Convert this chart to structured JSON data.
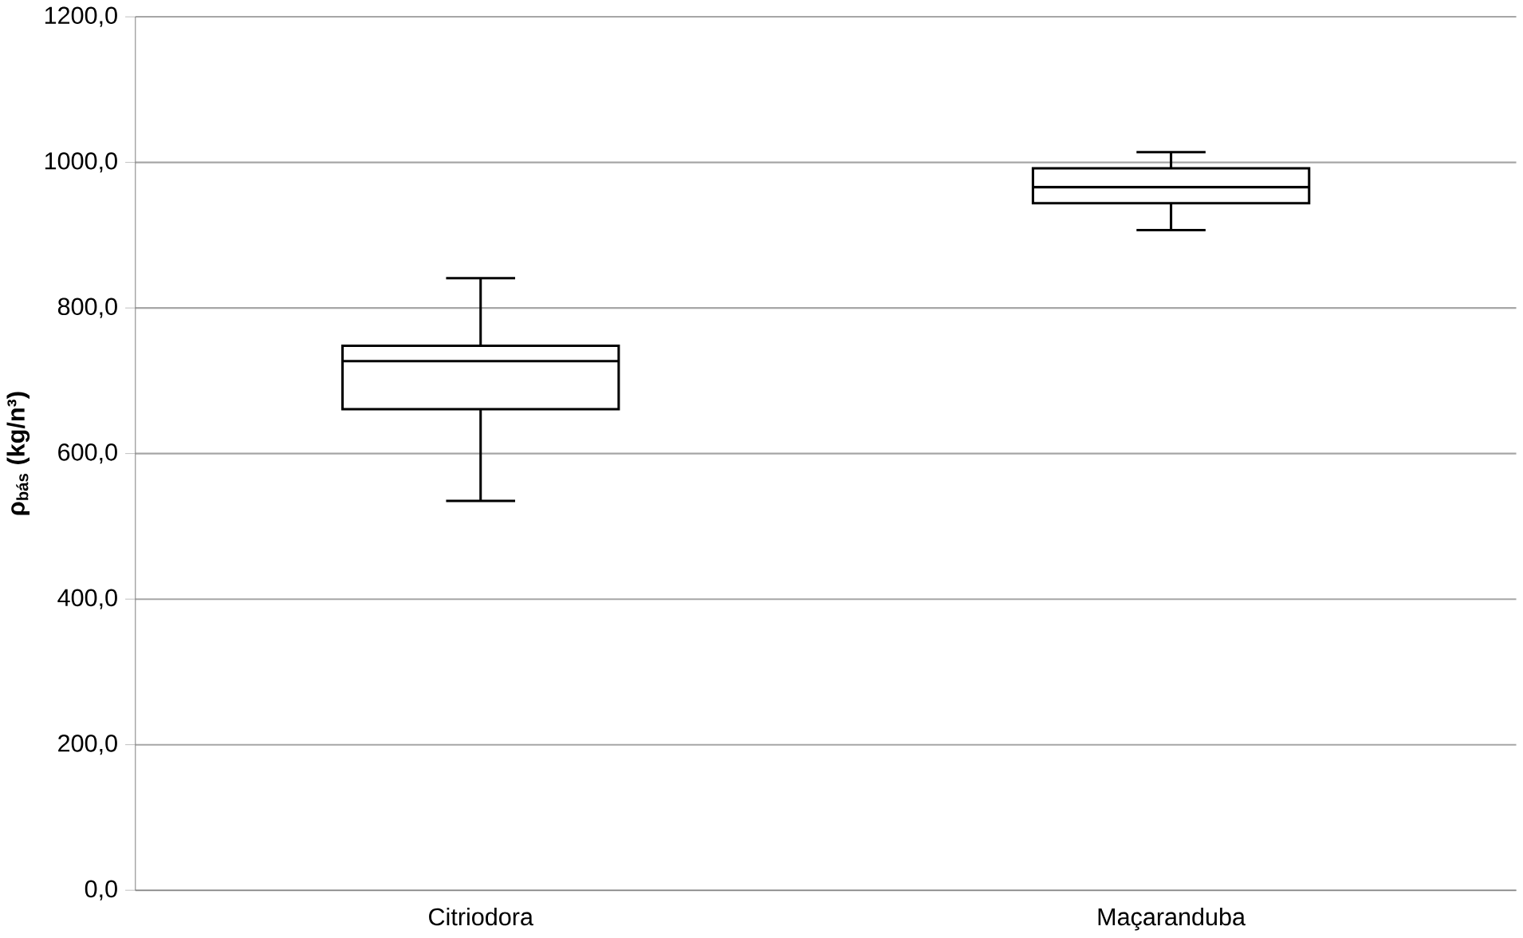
{
  "chart_data": {
    "type": "box",
    "ylabel": "ρ$_{bás}$ (kg/n³)",
    "categories": [
      "Citriodora",
      "Maçaranduba"
    ],
    "boxes": [
      {
        "low": 535,
        "q1": 661,
        "median": 727,
        "q3": 748,
        "high": 841
      },
      {
        "low": 907,
        "q1": 944,
        "median": 966,
        "q3": 992,
        "high": 1014
      }
    ],
    "ylim": [
      0,
      1200
    ],
    "yticks": [
      {
        "value": 0,
        "label": "0,0"
      },
      {
        "value": 200,
        "label": "200,0"
      },
      {
        "value": 400,
        "label": "400,0"
      },
      {
        "value": 600,
        "label": "600,0"
      },
      {
        "value": 800,
        "label": "800,0"
      },
      {
        "value": 1000,
        "label": "1000,0"
      },
      {
        "value": 1200,
        "label": "1200,0"
      }
    ],
    "grid": "y"
  }
}
